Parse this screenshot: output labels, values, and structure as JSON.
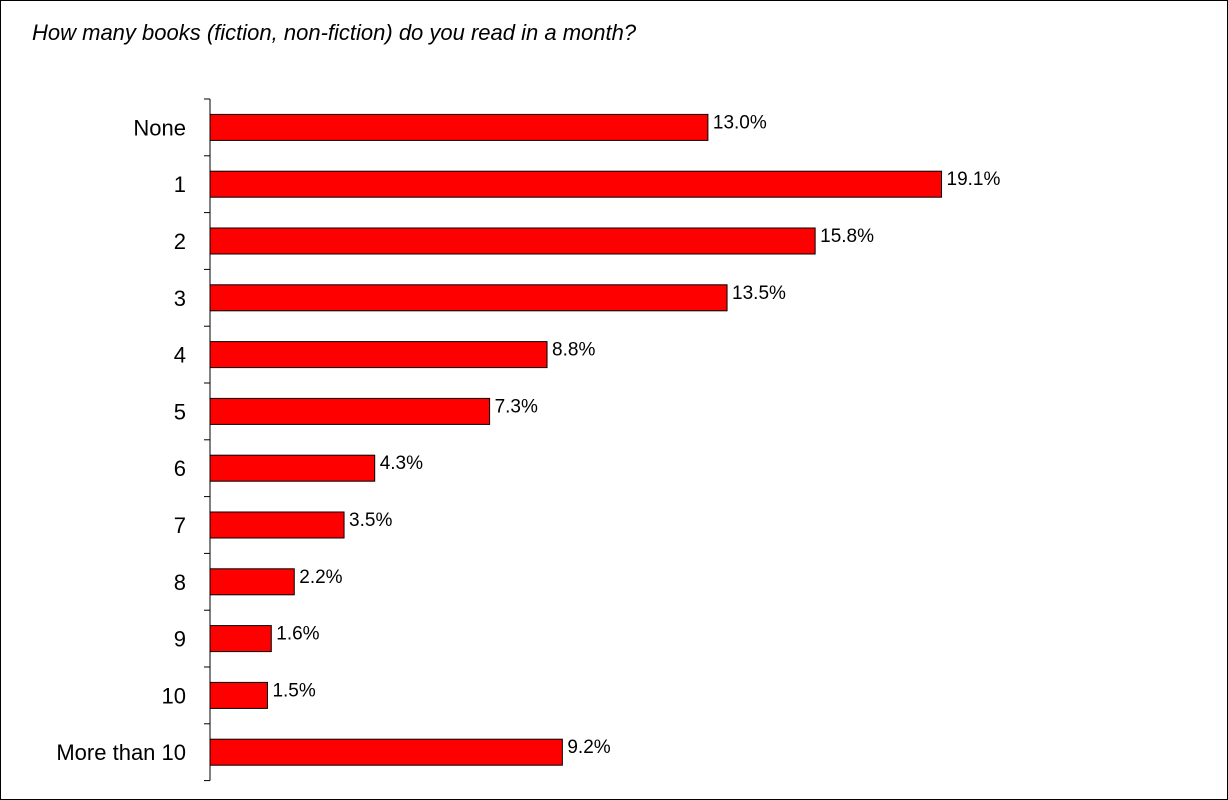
{
  "chart_data": {
    "type": "bar",
    "orientation": "horizontal",
    "title": "How many books (fiction, non-fiction) do you read in a month?",
    "categories": [
      "None",
      "1",
      "2",
      "3",
      "4",
      "5",
      "6",
      "7",
      "8",
      "9",
      "10",
      "More than 10"
    ],
    "values": [
      13.0,
      19.1,
      15.8,
      13.5,
      8.8,
      7.3,
      4.3,
      3.5,
      2.2,
      1.6,
      1.5,
      9.2
    ],
    "value_labels": [
      "13.0%",
      "19.1%",
      "15.8%",
      "13.5%",
      "8.8%",
      "7.3%",
      "4.3%",
      "3.5%",
      "2.2%",
      "1.6%",
      "1.5%",
      "9.2%"
    ],
    "unit": "%",
    "xlabel": "",
    "ylabel": "",
    "grid": false,
    "legend": "none",
    "bar_color": "#ff0000"
  }
}
